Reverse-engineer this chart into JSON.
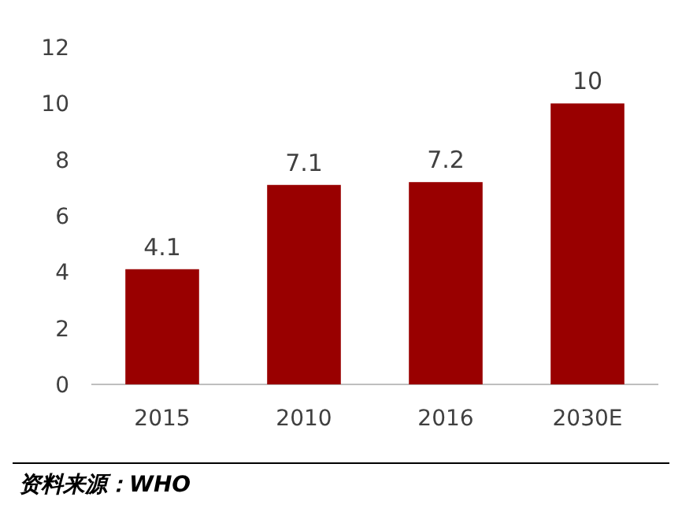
{
  "chart_data": {
    "type": "bar",
    "categories": [
      "2015",
      "2010",
      "2016",
      "2030E"
    ],
    "values": [
      4.1,
      7.1,
      7.2,
      10
    ],
    "color": "#990000",
    "data_labels": true,
    "ylim": [
      0,
      12
    ],
    "yticks": [
      0,
      2,
      4,
      6,
      8,
      10,
      12
    ],
    "grid": false,
    "annotations": [
      "资料来源：WHO"
    ]
  }
}
